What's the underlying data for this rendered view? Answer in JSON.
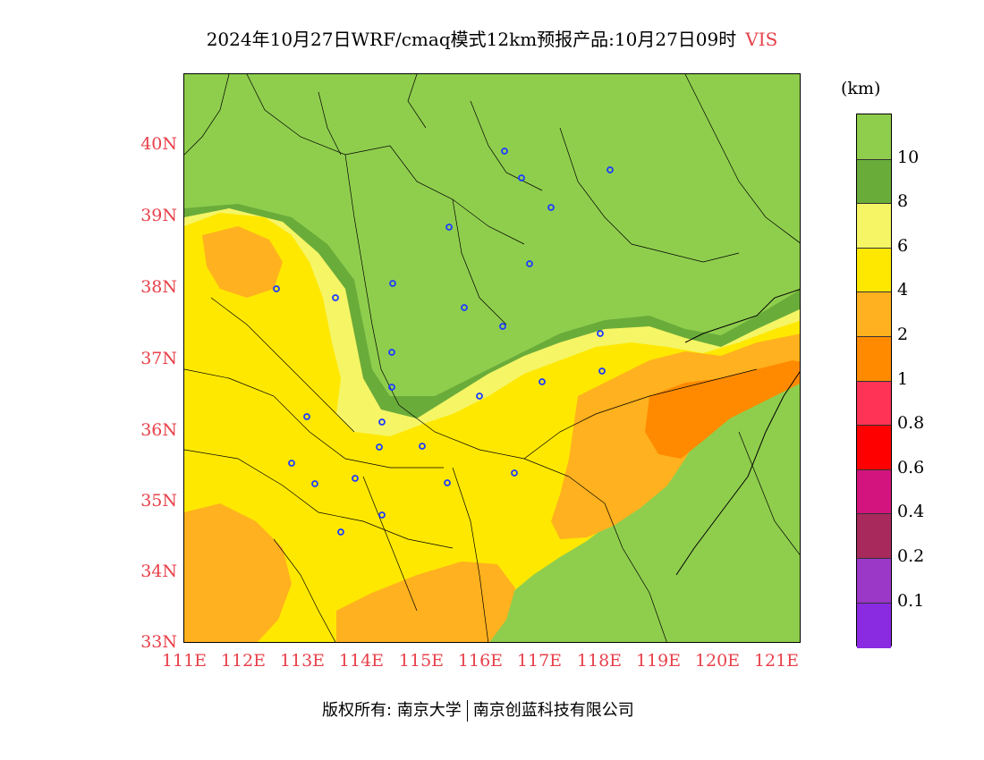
{
  "title": {
    "main": "2024年10月27日WRF/cmaq模式12km预报产品:10月27日09时",
    "variable": "VIS"
  },
  "map": {
    "lat_labels": [
      "40N",
      "39N",
      "38N",
      "37N",
      "36N",
      "35N",
      "34N",
      "33N"
    ],
    "lon_labels": [
      "111E",
      "112E",
      "113E",
      "114E",
      "115E",
      "116E",
      "117E",
      "118E",
      "119E",
      "120E",
      "121E"
    ],
    "colors": {
      "vis_gt10": "#8fce4d",
      "vis_8_10": "#6aac3a",
      "vis_6_8": "#f5f566",
      "vis_4_6": "#ffe800",
      "vis_2_4": "#ffb11f",
      "vis_1_2": "#ff8a00",
      "station": "#1f3cff"
    }
  },
  "legend": {
    "unit": "(km)",
    "boxes": [
      {
        "color": "#8fce4d"
      },
      {
        "color": "#6aac3a"
      },
      {
        "color": "#f5f566"
      },
      {
        "color": "#ffe800"
      },
      {
        "color": "#ffb11f"
      },
      {
        "color": "#ff8a00"
      },
      {
        "color": "#ff3355"
      },
      {
        "color": "#ff0000"
      },
      {
        "color": "#d4147e"
      },
      {
        "color": "#a82a5c"
      },
      {
        "color": "#9b38c8"
      },
      {
        "color": "#8a2be2"
      }
    ],
    "labels": [
      "10",
      "8",
      "6",
      "4",
      "2",
      "1",
      "0.8",
      "0.6",
      "0.4",
      "0.2",
      "0.1"
    ]
  },
  "footer": {
    "left": "版权所有: 南京大学",
    "right": "南京创蓝科技有限公司"
  }
}
